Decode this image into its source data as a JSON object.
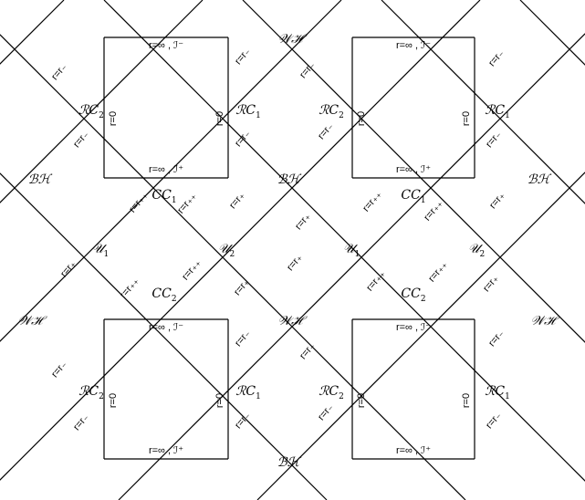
{
  "stroke_color": "#000000",
  "labels": {
    "r_inf_scri_minus": "r=∞ , ℐ⁻",
    "r_inf_scri_plus": "r=∞ , ℐ⁺",
    "r_zero": "r=0",
    "r_minus": "r=r₋",
    "r_plus": "r=r₊",
    "r_plusplus": "r=r₊₊"
  },
  "regions": {
    "RC": "ℛC",
    "CC": "CC",
    "U": "𝒰",
    "BH": "ℬℋ",
    "WH": "𝒲ℋ",
    "sub_1": "1",
    "sub_2": "2"
  }
}
